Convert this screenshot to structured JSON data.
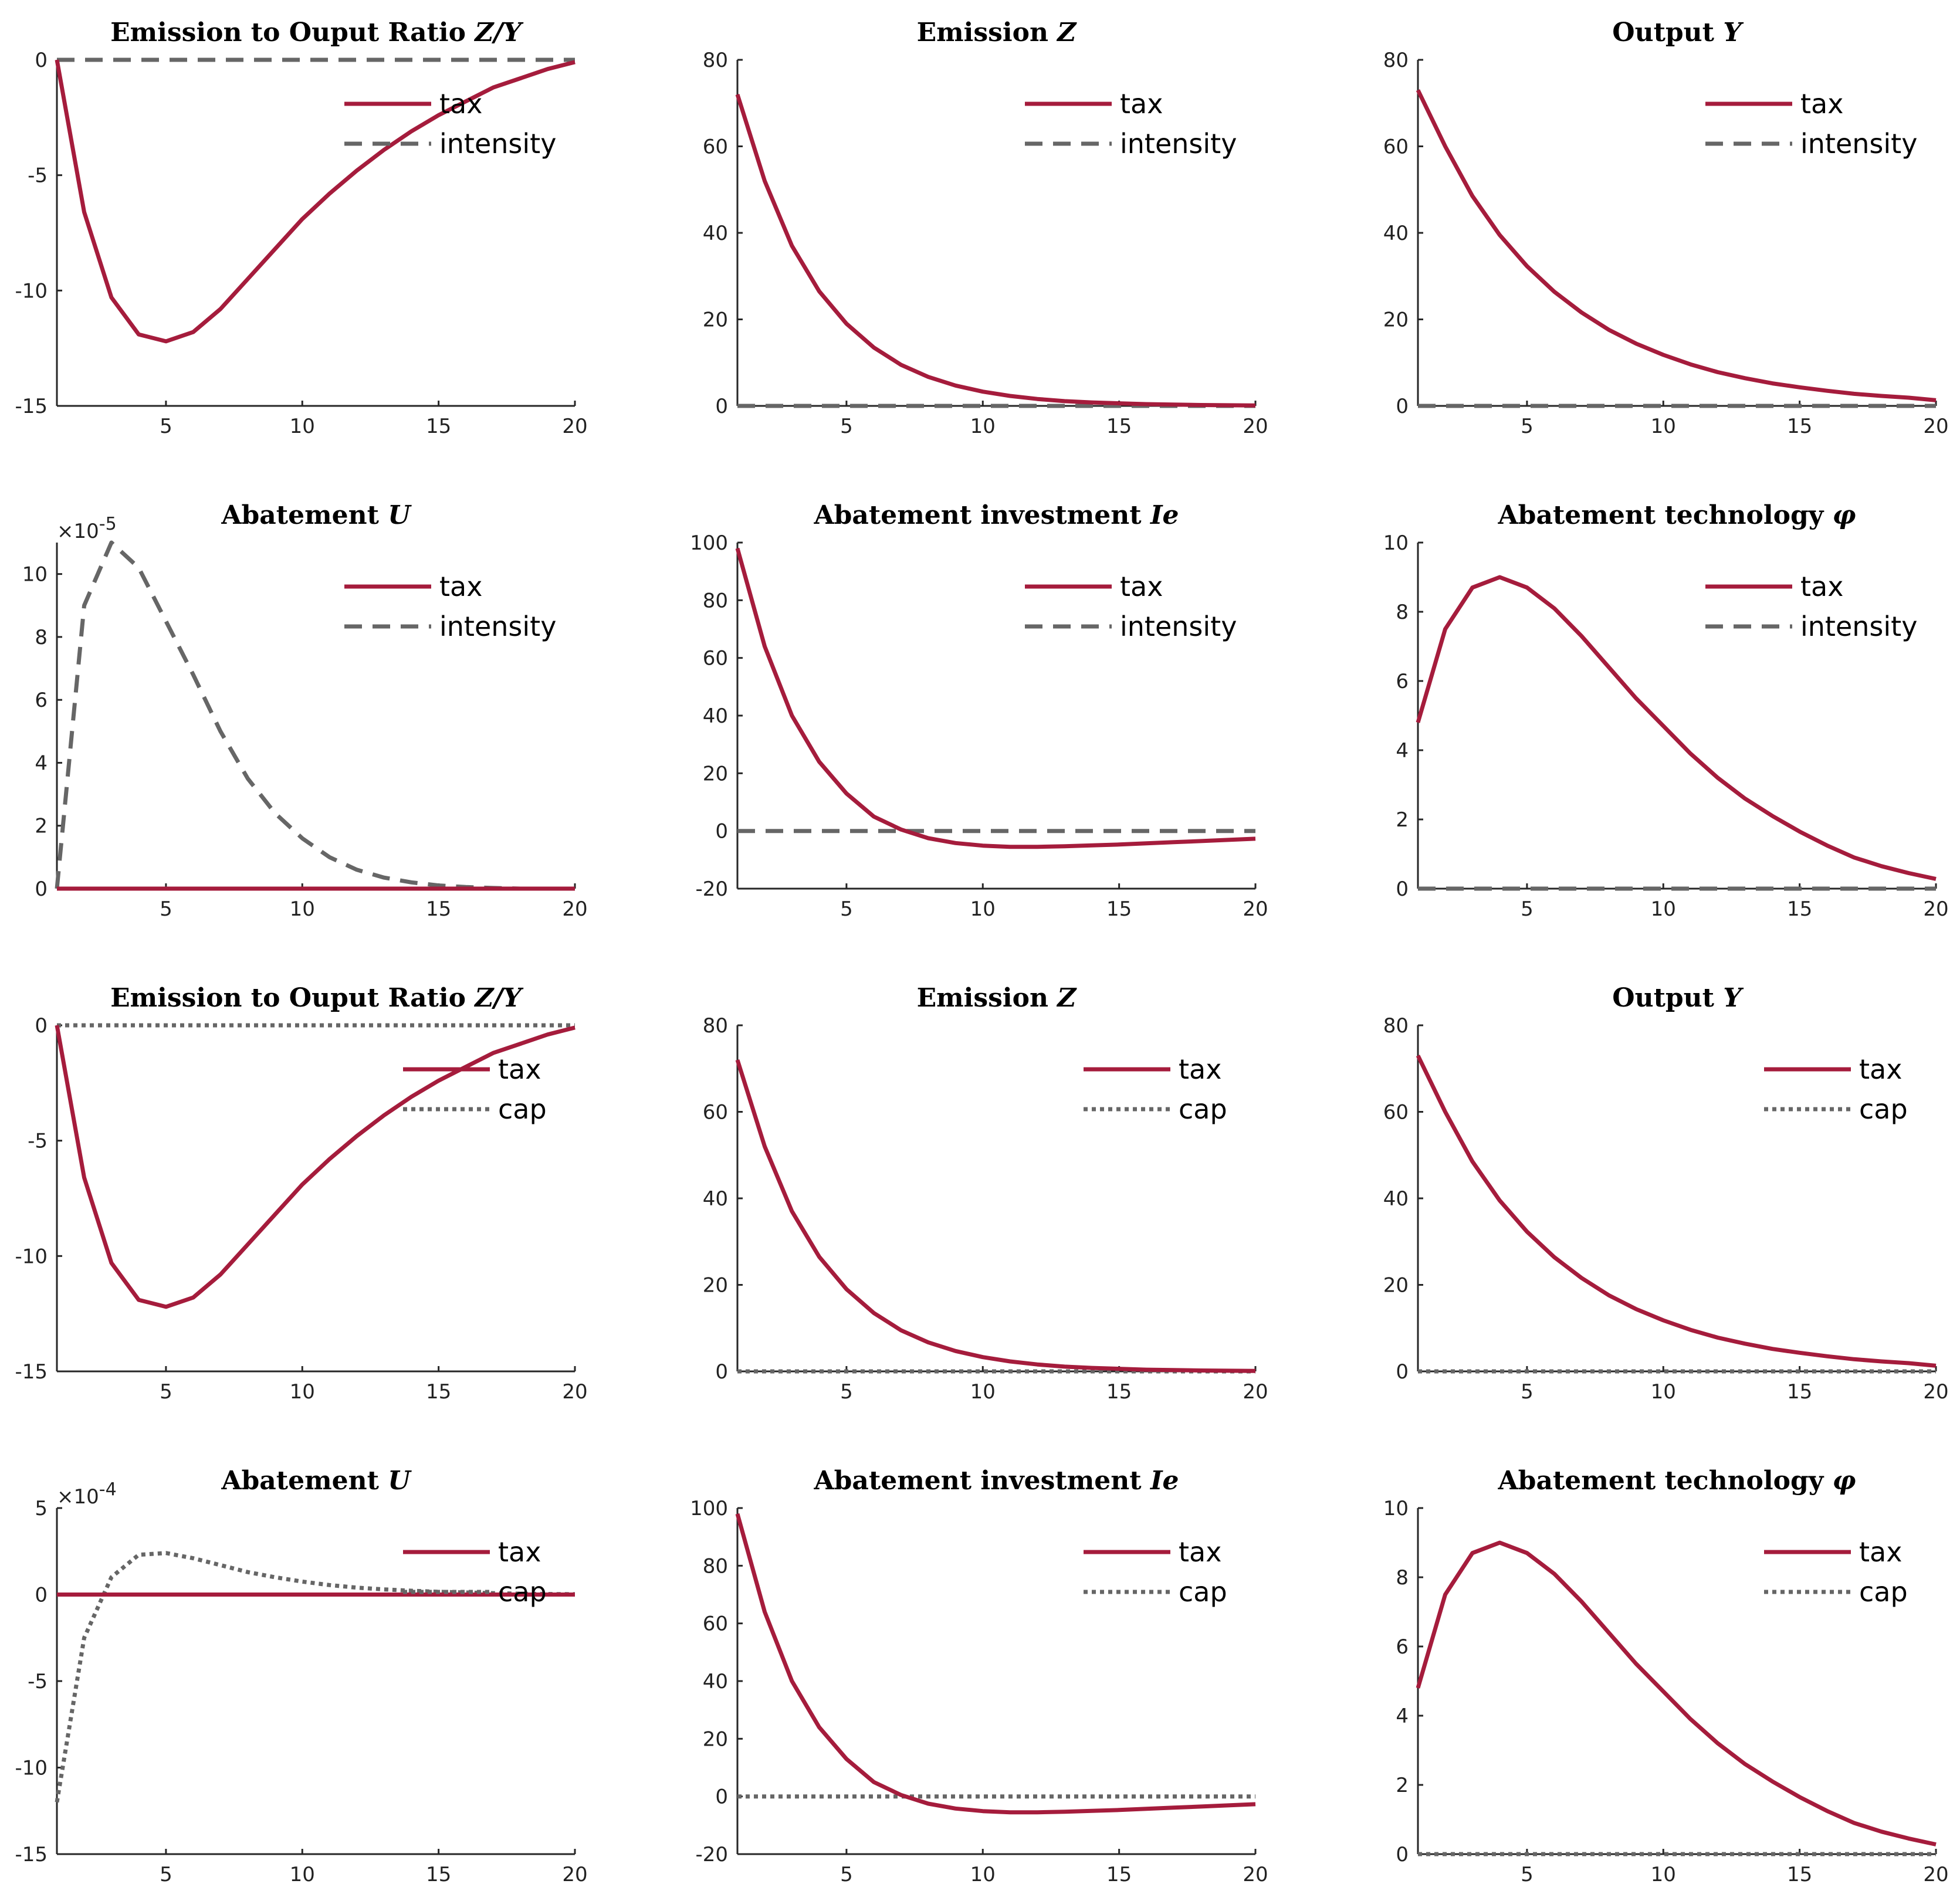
{
  "colors": {
    "tax": "#a51c3c",
    "other": "#666666",
    "axis": "#262626"
  },
  "chart_data": [
    {
      "type": "line",
      "title": "Emission to Ouput Ratio",
      "title_math": "Z/Y",
      "x": [
        1,
        2,
        3,
        4,
        5,
        6,
        7,
        8,
        9,
        10,
        11,
        12,
        13,
        14,
        15,
        16,
        17,
        18,
        19,
        20
      ],
      "xlim": [
        1,
        20
      ],
      "ylim": [
        -15,
        0
      ],
      "xticks": [
        5,
        10,
        15,
        20
      ],
      "yticks": [
        0,
        -5,
        -10,
        -15
      ],
      "series": [
        {
          "name": "tax",
          "style": "solid",
          "values": [
            0,
            -6.6,
            -10.3,
            -11.9,
            -12.2,
            -11.8,
            -10.8,
            -9.5,
            -8.2,
            -6.9,
            -5.8,
            -4.8,
            -3.9,
            -3.1,
            -2.4,
            -1.8,
            -1.2,
            -0.8,
            -0.4,
            -0.1
          ]
        },
        {
          "name": "intensity",
          "style": "dashed",
          "values": [
            0,
            0,
            0,
            0,
            0,
            0,
            0,
            0,
            0,
            0,
            0,
            0,
            0,
            0,
            0,
            0,
            0,
            0,
            0,
            0
          ]
        }
      ]
    },
    {
      "type": "line",
      "title": "Emission",
      "title_math": "Z",
      "x": [
        1,
        2,
        3,
        4,
        5,
        6,
        7,
        8,
        9,
        10,
        11,
        12,
        13,
        14,
        15,
        16,
        17,
        18,
        19,
        20
      ],
      "xlim": [
        1,
        20
      ],
      "ylim": [
        0,
        80
      ],
      "xticks": [
        5,
        10,
        15,
        20
      ],
      "yticks": [
        0,
        20,
        40,
        60,
        80
      ],
      "series": [
        {
          "name": "tax",
          "style": "solid",
          "values": [
            72,
            52,
            37,
            26.5,
            19,
            13.5,
            9.5,
            6.7,
            4.7,
            3.3,
            2.3,
            1.6,
            1.1,
            0.8,
            0.6,
            0.4,
            0.3,
            0.2,
            0.15,
            0.1
          ]
        },
        {
          "name": "intensity",
          "style": "dashed",
          "values": [
            0,
            0,
            0,
            0,
            0,
            0,
            0,
            0,
            0,
            0,
            0,
            0,
            0,
            0,
            0,
            0,
            0,
            0,
            0,
            0
          ]
        }
      ]
    },
    {
      "type": "line",
      "title": "Output",
      "title_math": "Y",
      "x": [
        1,
        2,
        3,
        4,
        5,
        6,
        7,
        8,
        9,
        10,
        11,
        12,
        13,
        14,
        15,
        16,
        17,
        18,
        19,
        20
      ],
      "xlim": [
        1,
        20
      ],
      "ylim": [
        0,
        80
      ],
      "xticks": [
        5,
        10,
        15,
        20
      ],
      "yticks": [
        0,
        20,
        40,
        60,
        80
      ],
      "series": [
        {
          "name": "tax",
          "style": "solid",
          "values": [
            73,
            60,
            48.5,
            39.5,
            32.3,
            26.4,
            21.6,
            17.6,
            14.4,
            11.8,
            9.6,
            7.8,
            6.4,
            5.2,
            4.3,
            3.5,
            2.8,
            2.3,
            1.9,
            1.3
          ]
        },
        {
          "name": "intensity",
          "style": "dashed",
          "values": [
            0,
            0,
            0,
            0,
            0,
            0,
            0,
            0,
            0,
            0,
            0,
            0,
            0,
            0,
            0,
            0,
            0,
            0,
            0,
            0
          ]
        }
      ]
    },
    {
      "type": "line",
      "title": "Abatement",
      "title_math": "U",
      "scale_label": "×10",
      "scale_exp": "-5",
      "x": [
        1,
        2,
        3,
        4,
        5,
        6,
        7,
        8,
        9,
        10,
        11,
        12,
        13,
        14,
        15,
        16,
        17,
        18,
        19,
        20
      ],
      "xlim": [
        1,
        20
      ],
      "ylim": [
        0,
        11
      ],
      "xticks": [
        5,
        10,
        15,
        20
      ],
      "yticks": [
        0,
        2,
        4,
        6,
        8,
        10
      ],
      "series": [
        {
          "name": "tax",
          "style": "solid",
          "values": [
            0,
            0,
            0,
            0,
            0,
            0,
            0,
            0,
            0,
            0,
            0,
            0,
            0,
            0,
            0,
            0,
            0,
            0,
            0,
            0
          ]
        },
        {
          "name": "intensity",
          "style": "dashed",
          "values": [
            0,
            9,
            11,
            10.2,
            8.5,
            6.8,
            5,
            3.5,
            2.4,
            1.6,
            1,
            0.6,
            0.35,
            0.2,
            0.1,
            0.05,
            0.02,
            0,
            0,
            0
          ]
        }
      ]
    },
    {
      "type": "line",
      "title": "Abatement investment",
      "title_math": "Ie",
      "x": [
        1,
        2,
        3,
        4,
        5,
        6,
        7,
        8,
        9,
        10,
        11,
        12,
        13,
        14,
        15,
        16,
        17,
        18,
        19,
        20
      ],
      "xlim": [
        1,
        20
      ],
      "ylim": [
        -20,
        100
      ],
      "xticks": [
        5,
        10,
        15,
        20
      ],
      "yticks": [
        -20,
        0,
        20,
        40,
        60,
        80,
        100
      ],
      "series": [
        {
          "name": "tax",
          "style": "solid",
          "values": [
            98,
            64,
            40,
            24,
            13,
            5,
            0.5,
            -2.5,
            -4.2,
            -5.1,
            -5.5,
            -5.5,
            -5.3,
            -5,
            -4.7,
            -4.3,
            -3.9,
            -3.5,
            -3.1,
            -2.7
          ]
        },
        {
          "name": "intensity",
          "style": "dashed",
          "values": [
            0,
            0,
            0,
            0,
            0,
            0,
            0,
            0,
            0,
            0,
            0,
            0,
            0,
            0,
            0,
            0,
            0,
            0,
            0,
            0
          ]
        }
      ]
    },
    {
      "type": "line",
      "title": "Abatement technology",
      "title_math": "φ",
      "x": [
        1,
        2,
        3,
        4,
        5,
        6,
        7,
        8,
        9,
        10,
        11,
        12,
        13,
        14,
        15,
        16,
        17,
        18,
        19,
        20
      ],
      "xlim": [
        1,
        20
      ],
      "ylim": [
        0,
        10
      ],
      "xticks": [
        5,
        10,
        15,
        20
      ],
      "yticks": [
        0,
        2,
        4,
        6,
        8,
        10
      ],
      "series": [
        {
          "name": "tax",
          "style": "solid",
          "values": [
            4.8,
            7.5,
            8.7,
            9,
            8.7,
            8.1,
            7.3,
            6.4,
            5.5,
            4.7,
            3.9,
            3.2,
            2.6,
            2.1,
            1.65,
            1.25,
            0.9,
            0.65,
            0.45,
            0.28
          ]
        },
        {
          "name": "intensity",
          "style": "dashed",
          "values": [
            0,
            0,
            0,
            0,
            0,
            0,
            0,
            0,
            0,
            0,
            0,
            0,
            0,
            0,
            0,
            0,
            0,
            0,
            0,
            0
          ]
        }
      ]
    },
    {
      "type": "line",
      "title": "Emission to Ouput Ratio",
      "title_math": "Z/Y",
      "x": [
        1,
        2,
        3,
        4,
        5,
        6,
        7,
        8,
        9,
        10,
        11,
        12,
        13,
        14,
        15,
        16,
        17,
        18,
        19,
        20
      ],
      "xlim": [
        1,
        20
      ],
      "ylim": [
        -15,
        0
      ],
      "xticks": [
        5,
        10,
        15,
        20
      ],
      "yticks": [
        0,
        -5,
        -10,
        -15
      ],
      "series": [
        {
          "name": "tax",
          "style": "solid",
          "values": [
            0,
            -6.6,
            -10.3,
            -11.9,
            -12.2,
            -11.8,
            -10.8,
            -9.5,
            -8.2,
            -6.9,
            -5.8,
            -4.8,
            -3.9,
            -3.1,
            -2.4,
            -1.8,
            -1.2,
            -0.8,
            -0.4,
            -0.1
          ]
        },
        {
          "name": "cap",
          "style": "dotted",
          "values": [
            0,
            0,
            0,
            0,
            0,
            0,
            0,
            0,
            0,
            0,
            0,
            0,
            0,
            0,
            0,
            0,
            0,
            0,
            0,
            0
          ]
        }
      ]
    },
    {
      "type": "line",
      "title": "Emission",
      "title_math": "Z",
      "x": [
        1,
        2,
        3,
        4,
        5,
        6,
        7,
        8,
        9,
        10,
        11,
        12,
        13,
        14,
        15,
        16,
        17,
        18,
        19,
        20
      ],
      "xlim": [
        1,
        20
      ],
      "ylim": [
        0,
        80
      ],
      "xticks": [
        5,
        10,
        15,
        20
      ],
      "yticks": [
        0,
        20,
        40,
        60,
        80
      ],
      "series": [
        {
          "name": "tax",
          "style": "solid",
          "values": [
            72,
            52,
            37,
            26.5,
            19,
            13.5,
            9.5,
            6.7,
            4.7,
            3.3,
            2.3,
            1.6,
            1.1,
            0.8,
            0.6,
            0.4,
            0.3,
            0.2,
            0.15,
            0.1
          ]
        },
        {
          "name": "cap",
          "style": "dotted",
          "values": [
            0,
            0,
            0,
            0,
            0,
            0,
            0,
            0,
            0,
            0,
            0,
            0,
            0,
            0,
            0,
            0,
            0,
            0,
            0,
            0
          ]
        }
      ]
    },
    {
      "type": "line",
      "title": "Output",
      "title_math": "Y",
      "x": [
        1,
        2,
        3,
        4,
        5,
        6,
        7,
        8,
        9,
        10,
        11,
        12,
        13,
        14,
        15,
        16,
        17,
        18,
        19,
        20
      ],
      "xlim": [
        1,
        20
      ],
      "ylim": [
        0,
        80
      ],
      "xticks": [
        5,
        10,
        15,
        20
      ],
      "yticks": [
        0,
        20,
        40,
        60,
        80
      ],
      "series": [
        {
          "name": "tax",
          "style": "solid",
          "values": [
            73,
            60,
            48.5,
            39.5,
            32.3,
            26.4,
            21.6,
            17.6,
            14.4,
            11.8,
            9.6,
            7.8,
            6.4,
            5.2,
            4.3,
            3.5,
            2.8,
            2.3,
            1.9,
            1.3
          ]
        },
        {
          "name": "cap",
          "style": "dotted",
          "values": [
            0,
            0,
            0,
            0,
            0,
            0,
            0,
            0,
            0,
            0,
            0,
            0,
            0,
            0,
            0,
            0,
            0,
            0,
            0,
            0
          ]
        }
      ]
    },
    {
      "type": "line",
      "title": "Abatement",
      "title_math": "U",
      "scale_label": "×10",
      "scale_exp": "-4",
      "x": [
        1,
        2,
        3,
        4,
        5,
        6,
        7,
        8,
        9,
        10,
        11,
        12,
        13,
        14,
        15,
        16,
        17,
        18,
        19,
        20
      ],
      "xlim": [
        1,
        20
      ],
      "ylim": [
        -15,
        5
      ],
      "xticks": [
        5,
        10,
        15,
        20
      ],
      "yticks": [
        5,
        0,
        -5,
        -10,
        -15
      ],
      "series": [
        {
          "name": "tax",
          "style": "solid",
          "values": [
            0,
            0,
            0,
            0,
            0,
            0,
            0,
            0,
            0,
            0,
            0,
            0,
            0,
            0,
            0,
            0,
            0,
            0,
            0,
            0
          ]
        },
        {
          "name": "cap",
          "style": "dotted",
          "values": [
            -12,
            -2.5,
            1,
            2.3,
            2.4,
            2.1,
            1.7,
            1.3,
            1,
            0.75,
            0.55,
            0.4,
            0.3,
            0.22,
            0.16,
            0.12,
            0.08,
            0.05,
            0.03,
            0.02
          ]
        }
      ]
    },
    {
      "type": "line",
      "title": "Abatement investment",
      "title_math": "Ie",
      "x": [
        1,
        2,
        3,
        4,
        5,
        6,
        7,
        8,
        9,
        10,
        11,
        12,
        13,
        14,
        15,
        16,
        17,
        18,
        19,
        20
      ],
      "xlim": [
        1,
        20
      ],
      "ylim": [
        -20,
        100
      ],
      "xticks": [
        5,
        10,
        15,
        20
      ],
      "yticks": [
        -20,
        0,
        20,
        40,
        60,
        80,
        100
      ],
      "series": [
        {
          "name": "tax",
          "style": "solid",
          "values": [
            98,
            64,
            40,
            24,
            13,
            5,
            0.5,
            -2.5,
            -4.2,
            -5.1,
            -5.5,
            -5.5,
            -5.3,
            -5,
            -4.7,
            -4.3,
            -3.9,
            -3.5,
            -3.1,
            -2.7
          ]
        },
        {
          "name": "cap",
          "style": "dotted",
          "values": [
            0,
            0,
            0,
            0,
            0,
            0,
            0,
            0,
            0,
            0,
            0,
            0,
            0,
            0,
            0,
            0,
            0,
            0,
            0,
            0
          ]
        }
      ]
    },
    {
      "type": "line",
      "title": "Abatement technology",
      "title_math": "φ",
      "x": [
        1,
        2,
        3,
        4,
        5,
        6,
        7,
        8,
        9,
        10,
        11,
        12,
        13,
        14,
        15,
        16,
        17,
        18,
        19,
        20
      ],
      "xlim": [
        1,
        20
      ],
      "ylim": [
        0,
        10
      ],
      "xticks": [
        5,
        10,
        15,
        20
      ],
      "yticks": [
        0,
        2,
        4,
        6,
        8,
        10
      ],
      "series": [
        {
          "name": "tax",
          "style": "solid",
          "values": [
            4.8,
            7.5,
            8.7,
            9,
            8.7,
            8.1,
            7.3,
            6.4,
            5.5,
            4.7,
            3.9,
            3.2,
            2.6,
            2.1,
            1.65,
            1.25,
            0.9,
            0.65,
            0.45,
            0.28
          ]
        },
        {
          "name": "cap",
          "style": "dotted",
          "values": [
            0,
            0,
            0,
            0,
            0,
            0,
            0,
            0,
            0,
            0,
            0,
            0,
            0,
            0,
            0,
            0,
            0,
            0,
            0,
            0
          ]
        }
      ]
    }
  ]
}
